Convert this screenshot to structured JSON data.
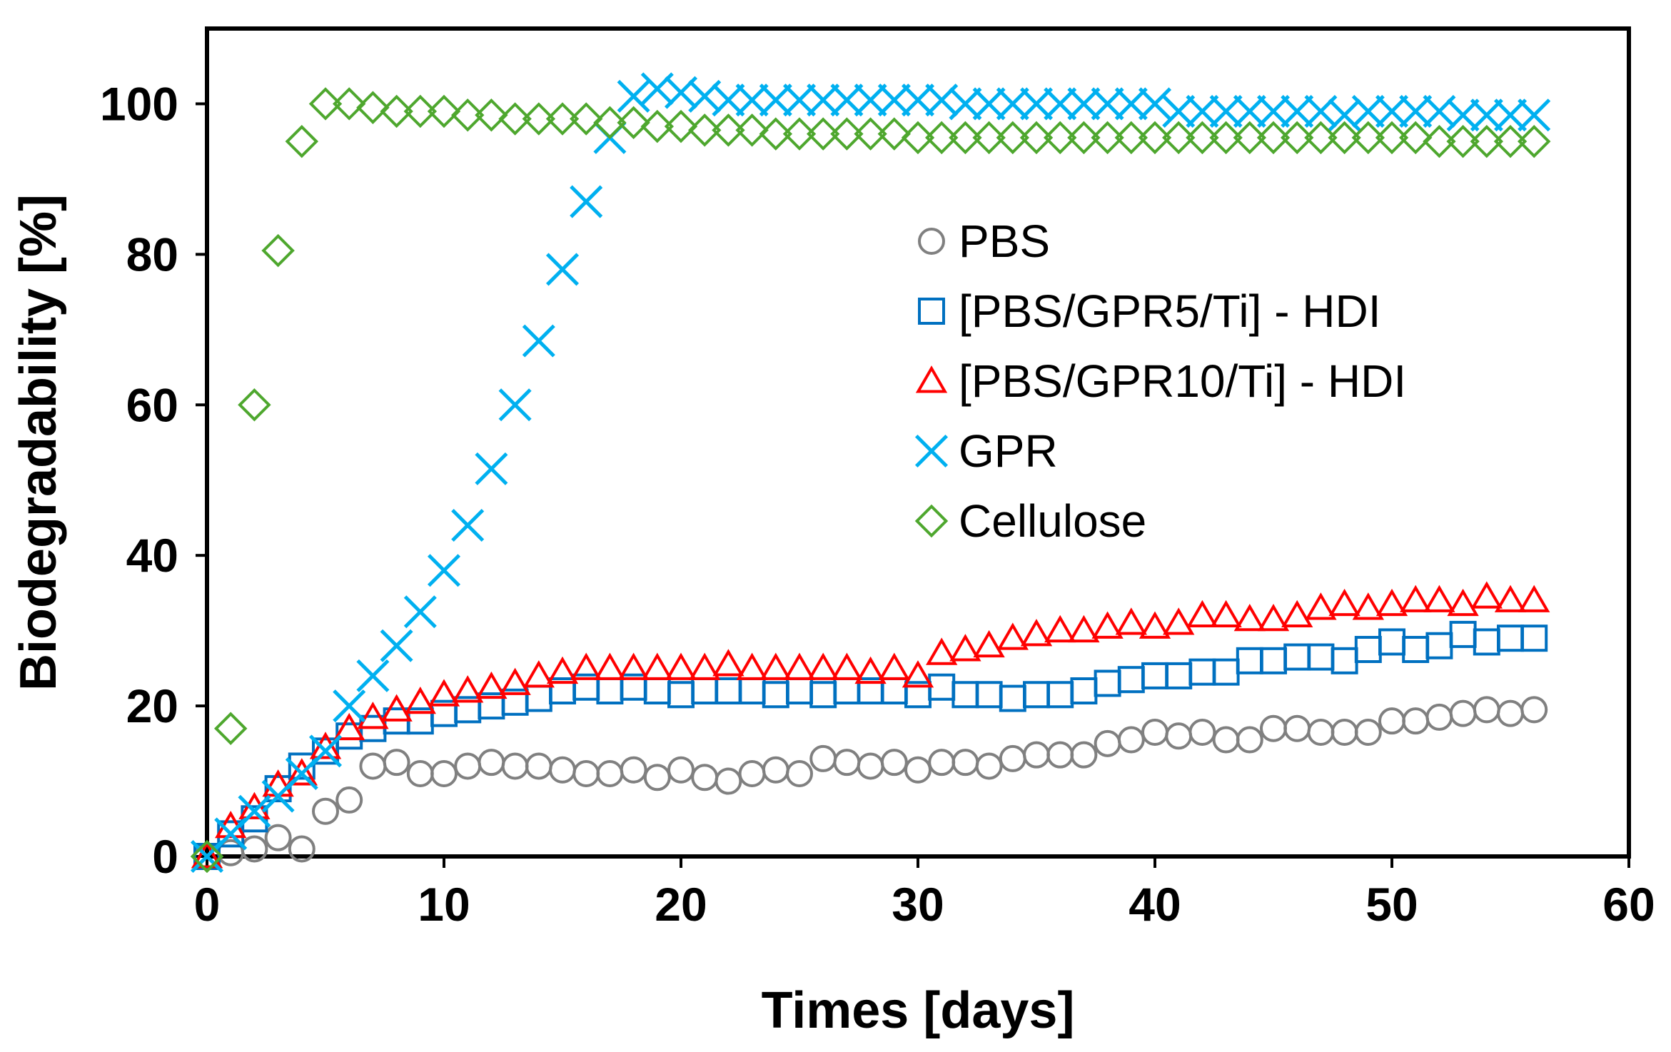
{
  "chart_data": {
    "type": "scatter",
    "title": "",
    "xlabel": "Times [days]",
    "ylabel": "Biodegradability [%]",
    "xlim": [
      0,
      60
    ],
    "ylim": [
      0,
      110
    ],
    "xticks": [
      0,
      10,
      20,
      30,
      40,
      50,
      60
    ],
    "yticks": [
      0,
      20,
      40,
      60,
      80,
      100
    ],
    "grid": false,
    "legend_position": "center-right",
    "series": [
      {
        "name": "PBS",
        "marker": "circle",
        "color": "#808080",
        "x": [
          0,
          1,
          2,
          3,
          4,
          5,
          6,
          7,
          8,
          9,
          10,
          11,
          12,
          13,
          14,
          15,
          16,
          17,
          18,
          19,
          20,
          21,
          22,
          23,
          24,
          25,
          26,
          27,
          28,
          29,
          30,
          31,
          32,
          33,
          34,
          35,
          36,
          37,
          38,
          39,
          40,
          41,
          42,
          43,
          44,
          45,
          46,
          47,
          48,
          49,
          50,
          51,
          52,
          53,
          54,
          55,
          56
        ],
        "y": [
          0,
          0.5,
          1,
          2.5,
          1,
          6,
          7.5,
          12,
          12.5,
          11,
          11,
          12,
          12.5,
          12,
          12,
          11.5,
          11,
          11,
          11.5,
          10.5,
          11.5,
          10.5,
          10,
          11,
          11.5,
          11,
          13,
          12.5,
          12,
          12.5,
          11.5,
          12.5,
          12.5,
          12,
          13,
          13.5,
          13.5,
          13.5,
          15,
          15.5,
          16.5,
          16,
          16.5,
          15.5,
          15.5,
          17,
          17,
          16.5,
          16.5,
          16.5,
          18,
          18,
          18.5,
          19,
          19.5,
          19,
          19.5
        ]
      },
      {
        "name": "[PBS/GPR5/Ti] - HDI",
        "marker": "square",
        "color": "#0070C0",
        "x": [
          0,
          1,
          2,
          3,
          4,
          5,
          6,
          7,
          8,
          9,
          10,
          11,
          12,
          13,
          14,
          15,
          16,
          17,
          18,
          19,
          20,
          21,
          22,
          23,
          24,
          25,
          26,
          27,
          28,
          29,
          30,
          31,
          32,
          33,
          34,
          35,
          36,
          37,
          38,
          39,
          40,
          41,
          42,
          43,
          44,
          45,
          46,
          47,
          48,
          49,
          50,
          51,
          52,
          53,
          54,
          55,
          56
        ],
        "y": [
          0,
          3,
          5,
          9,
          12,
          14,
          16,
          17,
          18,
          18,
          19,
          19.5,
          20,
          20.5,
          21,
          22,
          22.5,
          22,
          22.5,
          22,
          21.5,
          22,
          22,
          22,
          21.5,
          22,
          21.5,
          22,
          22,
          22,
          21.5,
          22.5,
          21.5,
          21.5,
          21,
          21.5,
          21.5,
          22,
          23,
          23.5,
          24,
          24,
          24.5,
          24.5,
          26,
          26,
          26.5,
          26.5,
          26,
          27.5,
          28.5,
          27.5,
          28,
          29.5,
          28.5,
          29,
          29
        ]
      },
      {
        "name": "[PBS/GPR10/Ti] - HDI",
        "marker": "triangle",
        "color": "#FF0000",
        "x": [
          0,
          1,
          2,
          3,
          4,
          5,
          6,
          7,
          8,
          9,
          10,
          11,
          12,
          13,
          14,
          15,
          16,
          17,
          18,
          19,
          20,
          21,
          22,
          23,
          24,
          25,
          26,
          27,
          28,
          29,
          30,
          31,
          32,
          33,
          34,
          35,
          36,
          37,
          38,
          39,
          40,
          41,
          42,
          43,
          44,
          45,
          46,
          47,
          48,
          49,
          50,
          51,
          52,
          53,
          54,
          55,
          56
        ],
        "y": [
          0,
          4,
          6.5,
          9.5,
          11,
          14.5,
          17,
          18.5,
          19.5,
          20.5,
          21.5,
          22,
          22.5,
          23,
          24,
          24.5,
          25,
          25,
          25,
          25,
          25,
          25,
          25.5,
          25,
          25,
          25,
          25,
          25,
          24.5,
          25,
          24,
          27,
          27.5,
          28,
          29,
          29.5,
          30,
          30,
          30.5,
          31,
          30.5,
          31,
          32,
          32,
          31.5,
          31.5,
          32,
          33,
          33.5,
          33,
          33.5,
          34,
          34,
          33.5,
          34.5,
          34,
          34
        ]
      },
      {
        "name": "GPR",
        "marker": "x",
        "color": "#00B0F0",
        "x": [
          0,
          1,
          2,
          3,
          4,
          5,
          6,
          7,
          8,
          9,
          10,
          11,
          12,
          13,
          14,
          15,
          16,
          17,
          18,
          19,
          20,
          21,
          22,
          23,
          24,
          25,
          26,
          27,
          28,
          29,
          30,
          31,
          32,
          33,
          34,
          35,
          36,
          37,
          38,
          39,
          40,
          41,
          42,
          43,
          44,
          45,
          46,
          47,
          48,
          49,
          50,
          51,
          52,
          53,
          54,
          55,
          56
        ],
        "y": [
          0,
          3,
          6,
          8,
          11,
          14,
          20,
          24,
          28,
          32.5,
          38,
          44,
          51.5,
          60,
          68.5,
          78,
          87,
          95.5,
          101,
          102,
          101.5,
          101,
          100.5,
          100.5,
          100.5,
          100.5,
          100.5,
          100.5,
          100.5,
          100.5,
          100.5,
          100.5,
          100,
          100,
          100,
          100,
          100,
          100,
          100,
          100,
          100,
          99,
          99,
          99,
          99,
          99,
          99,
          99,
          98.5,
          99,
          99,
          99,
          99,
          98.5,
          98.5,
          98.5,
          98.5
        ]
      },
      {
        "name": "Cellulose",
        "marker": "diamond",
        "color": "#4EA72E",
        "x": [
          0,
          1,
          2,
          3,
          4,
          5,
          6,
          7,
          8,
          9,
          10,
          11,
          12,
          13,
          14,
          15,
          16,
          17,
          18,
          19,
          20,
          21,
          22,
          23,
          24,
          25,
          26,
          27,
          28,
          29,
          30,
          31,
          32,
          33,
          34,
          35,
          36,
          37,
          38,
          39,
          40,
          41,
          42,
          43,
          44,
          45,
          46,
          47,
          48,
          49,
          50,
          51,
          52,
          53,
          54,
          55,
          56
        ],
        "y": [
          0,
          17,
          60,
          80.5,
          95,
          100,
          100,
          99.5,
          99,
          99,
          99,
          98.5,
          98.5,
          98,
          98,
          98,
          98,
          97.5,
          97.5,
          97,
          97,
          96.5,
          96.5,
          96.5,
          96,
          96,
          96,
          96,
          96,
          96,
          95.5,
          95.5,
          95.5,
          95.5,
          95.5,
          95.5,
          95.5,
          95.5,
          95.5,
          95.5,
          95.5,
          95.5,
          95.5,
          95.5,
          95.5,
          95.5,
          95.5,
          95.5,
          95.5,
          95.5,
          95.5,
          95.5,
          95,
          95,
          95,
          95,
          95
        ]
      }
    ]
  }
}
